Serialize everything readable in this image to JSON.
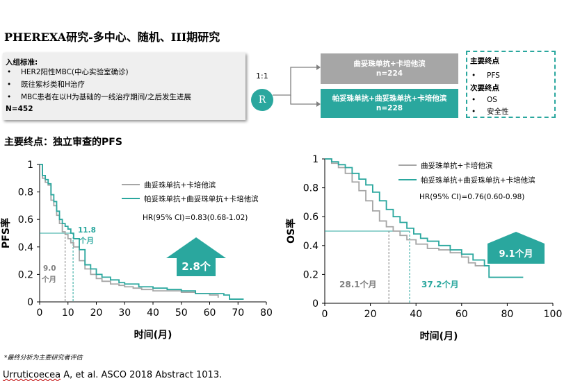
{
  "slide_title": "PHEREXA研究-多中心、随机、III期研究",
  "inclusion": {
    "heading": "入组标准:",
    "bullet": "•",
    "items": [
      "HER2阳性MBC(中心实验室确诊)",
      "既往紫杉类和H治疗",
      "MBC患者在以H为基础的一线治疗期间/之后发生进展"
    ],
    "n_label": "N=452"
  },
  "randomization": {
    "ratio": "1:1",
    "symbol": "R"
  },
  "arms": [
    {
      "name": "曲妥珠单抗+卡培他滨",
      "n": "n=224",
      "color": "#a6a6a6"
    },
    {
      "name": "帕妥珠单抗+曲妥珠单抗+卡培他滨",
      "n": "n=228",
      "color": "#2aa79e"
    }
  ],
  "endpoints": {
    "primary_heading": "主要终点",
    "primary_items": [
      "PFS"
    ],
    "secondary_heading": "次要终点",
    "secondary_items": [
      "OS",
      "安全性"
    ],
    "bullet": "•"
  },
  "primary_endpoint_title": "主要终点：独立审查的PFS",
  "footnote": "*最终分析为主要研究者评估",
  "citation_author": "Urruticoecea",
  "citation_rest": " A, et al. ASCO 2018 Abstract 1013.",
  "colors": {
    "teal": "#2aa79e",
    "gray": "#a6a6a6",
    "dark_gray": "#7f7f7f"
  },
  "chart_data": [
    {
      "type": "line",
      "title": "PFS",
      "xlabel": "时间(月)",
      "ylabel": "PFS率",
      "xlim": [
        0,
        80
      ],
      "ylim": [
        0,
        1
      ],
      "xticks": [
        0,
        10,
        20,
        30,
        40,
        50,
        60,
        70,
        80
      ],
      "yticks": [
        0,
        0.2,
        0.4,
        0.6,
        0.8,
        1
      ],
      "ytick_labels": [
        "0",
        "0.2",
        "0.4",
        "0.6",
        "0.8",
        "1"
      ],
      "legend": [
        "曲妥珠单抗+卡培他滨",
        "帕妥珠单抗+曲妥珠单抗+卡培他滨"
      ],
      "hr_text": "HR(95% CI)=0.83(0.68-1.02)",
      "median_line_y": 0.5,
      "medians": [
        {
          "label": "9.0 个月",
          "value": 9.0,
          "color": "#7f7f7f"
        },
        {
          "label": "11.8 个月",
          "value": 11.8,
          "color": "#2aa79e"
        }
      ],
      "callout": "2.8个",
      "series": [
        {
          "name": "曲妥珠单抗+卡培他滨",
          "color": "#a6a6a6",
          "x": [
            0,
            1,
            2,
            3,
            4,
            5,
            6,
            7,
            8,
            9,
            10,
            11,
            12,
            14,
            16,
            18,
            20,
            22,
            25,
            28,
            30,
            33,
            36,
            40,
            45,
            50,
            55,
            60,
            63
          ],
          "y": [
            1,
            0.9,
            0.87,
            0.85,
            0.74,
            0.7,
            0.63,
            0.57,
            0.51,
            0.49,
            0.46,
            0.43,
            0.4,
            0.3,
            0.24,
            0.2,
            0.17,
            0.15,
            0.13,
            0.12,
            0.11,
            0.1,
            0.09,
            0.08,
            0.08,
            0.07,
            0.06,
            0.05,
            0.03
          ]
        },
        {
          "name": "帕妥珠单抗+曲妥珠单抗+卡培他滨",
          "color": "#2aa79e",
          "x": [
            0,
            1,
            2,
            3,
            4,
            5,
            6,
            7,
            8,
            9,
            10,
            11,
            12,
            14,
            16,
            18,
            20,
            22,
            25,
            28,
            30,
            35,
            40,
            45,
            50,
            55,
            60,
            65,
            67,
            72
          ],
          "y": [
            1,
            0.92,
            0.89,
            0.86,
            0.78,
            0.73,
            0.66,
            0.6,
            0.57,
            0.55,
            0.53,
            0.5,
            0.46,
            0.38,
            0.27,
            0.24,
            0.2,
            0.18,
            0.16,
            0.14,
            0.13,
            0.11,
            0.1,
            0.09,
            0.08,
            0.06,
            0.06,
            0.05,
            0.02,
            0.02
          ]
        }
      ]
    },
    {
      "type": "line",
      "title": "OS",
      "xlabel": "时间(月)",
      "ylabel": "OS率",
      "xlim": [
        0,
        100
      ],
      "ylim": [
        0,
        1
      ],
      "xticks": [
        0,
        20,
        40,
        60,
        80,
        100
      ],
      "yticks": [
        0,
        0.2,
        0.4,
        0.6,
        0.8,
        1
      ],
      "ytick_labels": [
        "0",
        "0.2",
        "0.4",
        "0.6",
        "0.8",
        "1"
      ],
      "legend": [
        "曲妥珠单抗+卡培他滨",
        "帕妥珠单抗+曲妥珠单抗+卡培他滨"
      ],
      "hr_text": "HR(95% CI)=0.76(0.60-0.98)",
      "median_line_y": 0.5,
      "medians": [
        {
          "label": "28.1个月",
          "value": 28.1,
          "color": "#7f7f7f"
        },
        {
          "label": "37.2个月",
          "value": 37.2,
          "color": "#2aa79e"
        }
      ],
      "callout": "9.1个月",
      "series": [
        {
          "name": "曲妥珠单抗+卡培他滨",
          "color": "#a6a6a6",
          "x": [
            0,
            3,
            6,
            9,
            12,
            15,
            18,
            21,
            24,
            27,
            30,
            33,
            36,
            40,
            45,
            50,
            55,
            60,
            63,
            66,
            70
          ],
          "y": [
            1,
            0.97,
            0.94,
            0.9,
            0.84,
            0.78,
            0.71,
            0.64,
            0.57,
            0.53,
            0.5,
            0.47,
            0.44,
            0.41,
            0.38,
            0.37,
            0.35,
            0.32,
            0.28,
            0.26,
            0.26
          ]
        },
        {
          "name": "帕妥珠单抗+曲妥珠单抗+卡培他滨",
          "color": "#2aa79e",
          "x": [
            0,
            3,
            6,
            9,
            12,
            15,
            18,
            21,
            24,
            27,
            30,
            33,
            36,
            39,
            42,
            45,
            50,
            55,
            60,
            65,
            70,
            72,
            80,
            87
          ],
          "y": [
            1,
            0.98,
            0.96,
            0.94,
            0.9,
            0.86,
            0.82,
            0.77,
            0.71,
            0.65,
            0.6,
            0.56,
            0.52,
            0.48,
            0.45,
            0.43,
            0.4,
            0.37,
            0.34,
            0.3,
            0.26,
            0.18,
            0.18,
            0.18
          ]
        }
      ]
    }
  ]
}
